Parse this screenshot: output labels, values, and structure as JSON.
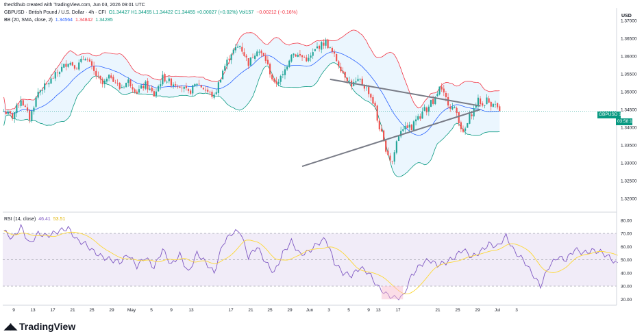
{
  "header": {
    "credit": "thecfdhub created with TradingView.com, Jun 03, 2026 09:01 UTC",
    "symbol": "GBPUSD · British Pound / U.S. Dollar · 4h · CFI",
    "ohlc": "O1.34427 H1.34455 L1.34422 C1.34455 +0.00027 (+0.02%) Vol157",
    "change": "−0.00212 (−0.16%)",
    "bb_label": "BB (20, SMA, close, 2)",
    "bb_mid": "1.34564",
    "bb_upper": "1.34842",
    "bb_lower": "1.34285"
  },
  "rsi_header": {
    "label": "RSI (14, close)",
    "rsi_value": "46.41",
    "ma_value": "53.51"
  },
  "price_axis": {
    "currency": "USD",
    "last_symbol": "GBPUSD",
    "last_price": "1.34455",
    "countdown": "03:58:13"
  },
  "logo": "TradingView",
  "colors": {
    "up": "#26a69a",
    "down": "#ef5350",
    "bb_upper": "#f23645",
    "bb_lower": "#089981",
    "bb_mid": "#2962ff",
    "bb_fill": "#e3f2fd",
    "rsi_line": "#7e57c2",
    "rsi_ma": "#fdd835",
    "rsi_band": "#ede7f6",
    "trendline": "#787b86"
  },
  "chart_data": [
    {
      "type": "candlestick",
      "y_ticks": [
        "1.37000",
        "1.36500",
        "1.36000",
        "1.35500",
        "1.35000",
        "1.34500",
        "1.34000",
        "1.33500",
        "1.33000",
        "1.32500",
        "1.32000"
      ],
      "ylim": [
        1.3165,
        1.3735
      ],
      "bars": 202,
      "close_path": [
        [
          0,
          1.3445
        ],
        [
          4,
          1.343
        ],
        [
          8,
          1.348
        ],
        [
          12,
          1.3425
        ],
        [
          16,
          1.35
        ],
        [
          20,
          1.352
        ],
        [
          26,
          1.356
        ],
        [
          30,
          1.3585
        ],
        [
          34,
          1.357
        ],
        [
          38,
          1.36
        ],
        [
          42,
          1.3555
        ],
        [
          46,
          1.352
        ],
        [
          50,
          1.3545
        ],
        [
          54,
          1.351
        ],
        [
          58,
          1.353
        ],
        [
          62,
          1.35
        ],
        [
          66,
          1.352
        ],
        [
          70,
          1.349
        ],
        [
          74,
          1.354
        ],
        [
          78,
          1.3525
        ],
        [
          82,
          1.352
        ],
        [
          86,
          1.3495
        ],
        [
          90,
          1.3525
        ],
        [
          94,
          1.3505
        ],
        [
          98,
          1.3485
        ],
        [
          102,
          1.356
        ],
        [
          106,
          1.361
        ],
        [
          110,
          1.363
        ],
        [
          114,
          1.358
        ],
        [
          118,
          1.362
        ],
        [
          122,
          1.359
        ],
        [
          126,
          1.352
        ],
        [
          130,
          1.3545
        ],
        [
          134,
          1.361
        ],
        [
          138,
          1.36
        ],
        [
          142,
          1.359
        ],
        [
          146,
          1.3625
        ],
        [
          150,
          1.364
        ],
        [
          154,
          1.36
        ],
        [
          158,
          1.3555
        ],
        [
          162,
          1.352
        ],
        [
          166,
          1.353
        ],
        [
          170,
          1.35
        ],
        [
          174,
          1.344
        ],
        [
          178,
          1.338
        ],
        [
          182,
          1.334
        ],
        [
          186,
          1.331
        ],
        [
          190,
          1.3355
        ],
        [
          194,
          1.342
        ]
      ],
      "symmetrical_triangle": {
        "upper": {
          "from": [
            1.3535
          ],
          "to": [
            1.346
          ]
        },
        "lower": {
          "from": [
            1.329
          ],
          "to": [
            1.345
          ]
        }
      },
      "last_price": 1.34455
    },
    {
      "type": "line",
      "title": "RSI (14, close)",
      "y_ticks": [
        "80.00",
        "70.00",
        "60.00",
        "50.00",
        "40.00",
        "30.00",
        "20.00"
      ],
      "ylim": [
        16,
        82
      ],
      "bands": [
        30,
        50,
        70
      ],
      "rsi_path": [
        [
          0,
          72
        ],
        [
          4,
          66
        ],
        [
          8,
          75
        ],
        [
          12,
          62
        ],
        [
          16,
          70
        ],
        [
          20,
          68
        ],
        [
          26,
          72
        ],
        [
          30,
          74
        ],
        [
          34,
          65
        ],
        [
          38,
          62
        ],
        [
          42,
          56
        ],
        [
          46,
          52
        ],
        [
          50,
          50
        ],
        [
          54,
          48
        ],
        [
          58,
          54
        ],
        [
          62,
          45
        ],
        [
          66,
          52
        ],
        [
          70,
          44
        ],
        [
          74,
          58
        ],
        [
          78,
          46
        ],
        [
          82,
          54
        ],
        [
          86,
          40
        ],
        [
          90,
          55
        ],
        [
          94,
          48
        ],
        [
          98,
          40
        ],
        [
          102,
          62
        ],
        [
          106,
          70
        ],
        [
          110,
          72
        ],
        [
          114,
          52
        ],
        [
          118,
          60
        ],
        [
          122,
          48
        ],
        [
          126,
          40
        ],
        [
          130,
          55
        ],
        [
          134,
          64
        ],
        [
          138,
          54
        ],
        [
          142,
          56
        ],
        [
          146,
          62
        ],
        [
          150,
          66
        ],
        [
          154,
          48
        ],
        [
          158,
          40
        ],
        [
          162,
          38
        ],
        [
          166,
          44
        ],
        [
          170,
          40
        ],
        [
          174,
          30
        ],
        [
          178,
          24
        ],
        [
          182,
          21
        ],
        [
          186,
          22
        ],
        [
          190,
          38
        ],
        [
          194,
          46
        ],
        [
          198,
          50
        ],
        [
          202,
          46
        ],
        [
          206,
          48
        ],
        [
          210,
          52
        ],
        [
          214,
          58
        ],
        [
          218,
          52
        ],
        [
          222,
          56
        ],
        [
          226,
          62
        ],
        [
          230,
          60
        ],
        [
          234,
          68
        ],
        [
          238,
          56
        ],
        [
          242,
          50
        ],
        [
          246,
          40
        ],
        [
          250,
          30
        ],
        [
          254,
          45
        ],
        [
          258,
          52
        ],
        [
          262,
          50
        ],
        [
          266,
          58
        ],
        [
          270,
          55
        ],
        [
          274,
          57
        ],
        [
          278,
          56
        ],
        [
          282,
          52
        ],
        [
          286,
          46.4
        ]
      ],
      "last_value": 46.41,
      "ma_value": 53.51
    }
  ],
  "x_axis": {
    "ticks": [
      "9",
      "13",
      "17",
      "21",
      "25",
      "29",
      "May",
      "5",
      "9",
      "13",
      "17",
      "21",
      "25",
      "29",
      "Jun",
      "3",
      "5",
      "9",
      "13",
      "17",
      "21",
      "25",
      "29",
      "Jul",
      "3"
    ]
  }
}
